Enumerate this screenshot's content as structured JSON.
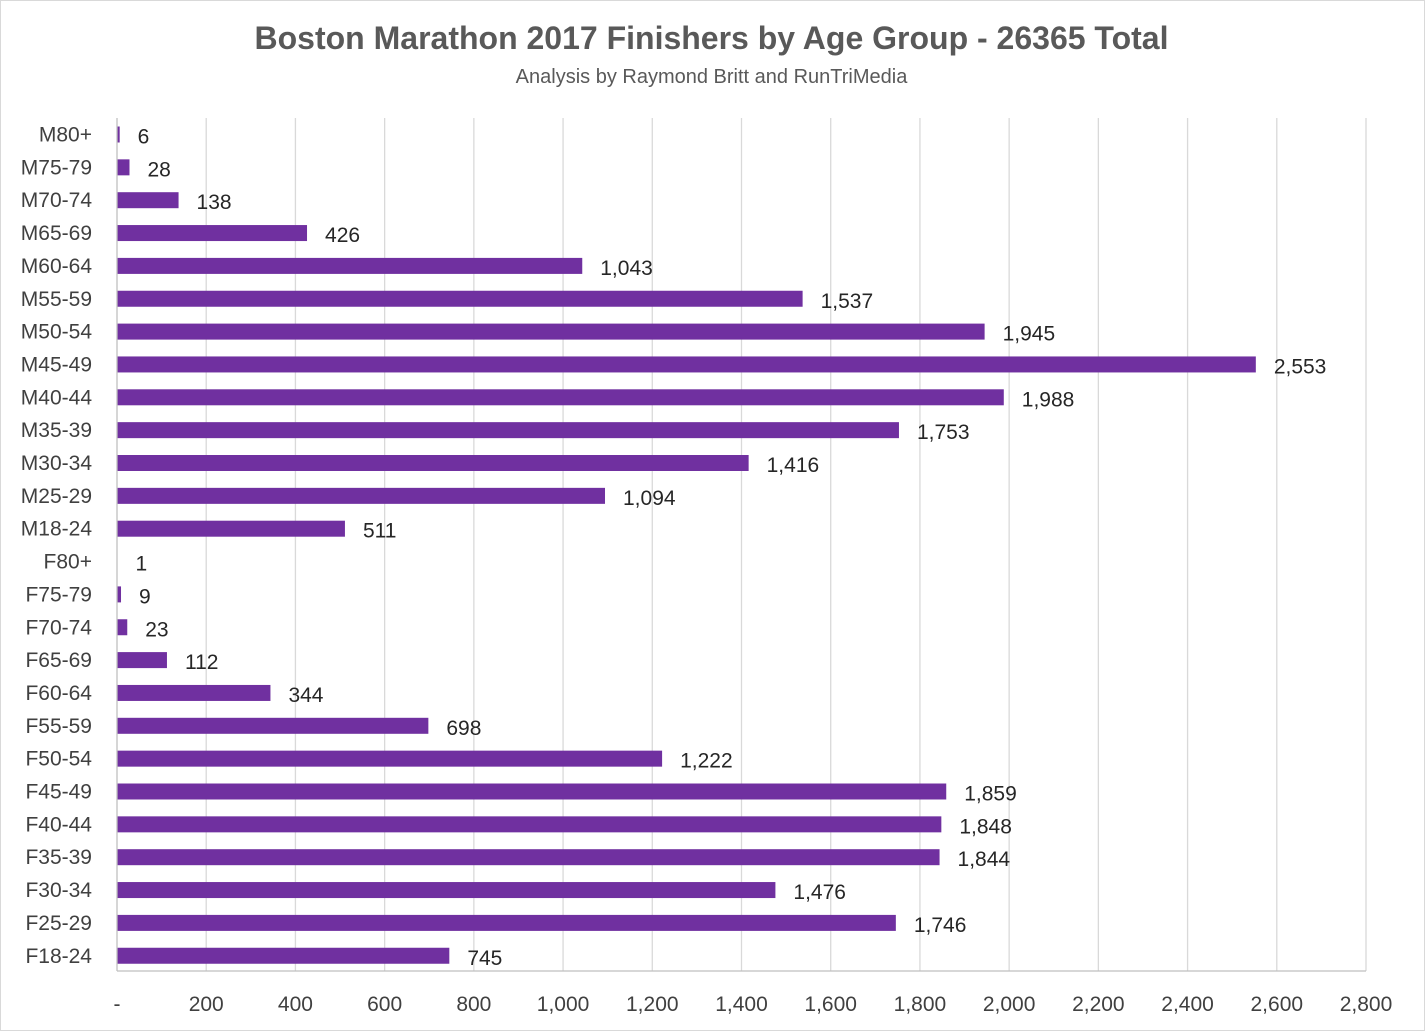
{
  "chart_data": {
    "type": "bar",
    "orientation": "horizontal",
    "title": "Boston Marathon 2017 Finishers by Age Group - 26365 Total",
    "subtitle": "Analysis by Raymond Britt and RunTriMedia",
    "xlabel": "",
    "ylabel": "",
    "xlim": [
      0,
      2800
    ],
    "x_ticks": [
      "-",
      "200",
      "400",
      "600",
      "800",
      "1,000",
      "1,200",
      "1,400",
      "1,600",
      "1,800",
      "2,000",
      "2,200",
      "2,400",
      "2,600",
      "2,800"
    ],
    "grid": true,
    "legend": "none",
    "bar_color": "#7030A0",
    "categories": [
      "M80+",
      "M75-79",
      "M70-74",
      "M65-69",
      "M60-64",
      "M55-59",
      "M50-54",
      "M45-49",
      "M40-44",
      "M35-39",
      "M30-34",
      "M25-29",
      "M18-24",
      "F80+",
      "F75-79",
      "F70-74",
      "F65-69",
      "F60-64",
      "F55-59",
      "F50-54",
      "F45-49",
      "F40-44",
      "F35-39",
      "F30-34",
      "F25-29",
      "F18-24"
    ],
    "values": [
      6,
      28,
      138,
      426,
      1043,
      1537,
      1945,
      2553,
      1988,
      1753,
      1416,
      1094,
      511,
      1,
      9,
      23,
      112,
      344,
      698,
      1222,
      1859,
      1848,
      1844,
      1476,
      1746,
      745
    ],
    "data_labels": [
      "6",
      "28",
      "138",
      "426",
      "1,043",
      "1,537",
      "1,945",
      "2,553",
      "1,988",
      "1,753",
      "1,416",
      "1,094",
      "511",
      "1",
      "9",
      "23",
      "112",
      "344",
      "698",
      "1,222",
      "1,859",
      "1,848",
      "1,844",
      "1,476",
      "1,746",
      "745"
    ]
  }
}
